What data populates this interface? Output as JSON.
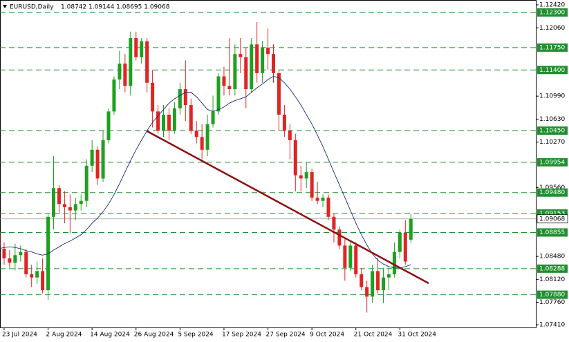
{
  "chart_data": {
    "type": "candlestick",
    "symbol": "EURUSD,Daily",
    "ohlc_text": "1.08742 1.09144 1.08695 1.09068",
    "up_color": "#1fa01f",
    "down_color": "#e02424",
    "categories": [
      null,
      "23 Jul 2024",
      null,
      null,
      null,
      null,
      null,
      null,
      null,
      "2 Aug 2024",
      null,
      null,
      null,
      null,
      null,
      null,
      null,
      "14 Aug 2024",
      null,
      null,
      null,
      null,
      null,
      null,
      null,
      "26 Aug 2024",
      null,
      null,
      null,
      null,
      null,
      null,
      null,
      "5 Sep 2024",
      null,
      null,
      null,
      null,
      null,
      null,
      null,
      "17 Sep 2024",
      null,
      null,
      null,
      null,
      null,
      null,
      null,
      "27 Sep 2024",
      null,
      null,
      null,
      null,
      null,
      null,
      null,
      "9 Oct 2024",
      null,
      null,
      null,
      null,
      null,
      null,
      null,
      "21 Oct 2024",
      null,
      null,
      null,
      null,
      null,
      null,
      null,
      "31 Oct 2024",
      null,
      null
    ],
    "open": [
      1.0885,
      1.086,
      1.0845,
      1.0838,
      1.085,
      1.0855,
      1.082,
      1.0815,
      1.0825,
      1.0795,
      1.091,
      1.0955,
      1.093,
      1.0925,
      1.092,
      1.093,
      1.0935,
      1.099,
      1.1015,
      1.097,
      1.103,
      1.1075,
      1.1125,
      1.115,
      1.1115,
      1.119,
      1.116,
      1.1185,
      1.112,
      1.1075,
      1.1045,
      1.107,
      1.1045,
      1.108,
      1.111,
      1.1085,
      1.1045,
      1.1035,
      1.1015,
      1.1055,
      1.1075,
      1.113,
      1.1115,
      1.111,
      1.1165,
      1.116,
      1.111,
      1.118,
      1.1135,
      1.1175,
      1.1165,
      1.1135,
      1.107,
      1.1045,
      1.103,
      1.0975,
      1.097,
      1.098,
      1.094,
      1.0935,
      1.094,
      1.091,
      1.089,
      1.0865,
      1.083,
      1.0865,
      1.082,
      1.08,
      1.0785,
      1.0825,
      1.0795,
      1.0815,
      1.082,
      1.0855,
      1.0885,
      1.08742
    ],
    "high": [
      1.089,
      1.087,
      1.0858,
      1.0868,
      1.0865,
      1.086,
      1.0835,
      1.084,
      1.0845,
      1.0915,
      1.1005,
      1.096,
      1.095,
      1.0945,
      1.094,
      1.0945,
      1.1,
      1.103,
      1.102,
      1.1045,
      1.108,
      1.113,
      1.117,
      1.1165,
      1.12,
      1.12,
      1.119,
      1.119,
      1.114,
      1.1085,
      1.1085,
      1.108,
      1.109,
      1.112,
      1.1155,
      1.1095,
      1.106,
      1.1055,
      1.107,
      1.11,
      1.1135,
      1.1145,
      1.119,
      1.118,
      1.119,
      1.1175,
      1.119,
      1.1215,
      1.1185,
      1.1205,
      1.118,
      1.114,
      1.1085,
      1.1055,
      1.104,
      1.099,
      1.0995,
      1.0985,
      1.0965,
      1.0945,
      1.0945,
      1.0915,
      1.0895,
      1.0875,
      1.087,
      1.087,
      1.083,
      1.081,
      1.0835,
      1.0845,
      1.083,
      1.083,
      1.087,
      1.089,
      1.0905,
      1.09144
    ],
    "low": [
      1.0855,
      1.0835,
      1.083,
      1.0826,
      1.084,
      1.0815,
      1.08,
      1.0805,
      1.079,
      1.078,
      1.089,
      1.0915,
      1.09,
      1.0885,
      1.0905,
      1.092,
      1.0925,
      1.098,
      1.096,
      1.0965,
      1.1025,
      1.107,
      1.111,
      1.1105,
      1.11,
      1.1155,
      1.115,
      1.1105,
      1.105,
      1.104,
      1.1035,
      1.103,
      1.104,
      1.107,
      1.106,
      1.104,
      1.1025,
      1.1,
      1.1005,
      1.105,
      1.107,
      1.11,
      1.11,
      1.11,
      1.1135,
      1.108,
      1.1105,
      1.112,
      1.112,
      1.114,
      1.112,
      1.1045,
      1.1035,
      1.1,
      1.095,
      1.095,
      1.0955,
      1.0935,
      1.093,
      1.0925,
      1.0905,
      1.087,
      1.086,
      1.081,
      1.0825,
      1.0815,
      1.0795,
      1.076,
      1.0775,
      1.079,
      1.0775,
      1.0795,
      1.0815,
      1.0845,
      1.0835,
      1.08695
    ],
    "close": [
      1.086,
      1.0845,
      1.0838,
      1.085,
      1.0855,
      1.082,
      1.0815,
      1.0825,
      1.0795,
      1.091,
      1.0955,
      1.093,
      1.0925,
      1.092,
      1.093,
      1.0935,
      1.099,
      1.1015,
      1.097,
      1.103,
      1.1075,
      1.1125,
      1.115,
      1.1115,
      1.119,
      1.116,
      1.1185,
      1.112,
      1.1075,
      1.1045,
      1.107,
      1.1045,
      1.108,
      1.111,
      1.1085,
      1.1045,
      1.1035,
      1.1015,
      1.1055,
      1.1075,
      1.113,
      1.1115,
      1.111,
      1.1165,
      1.116,
      1.111,
      1.118,
      1.1135,
      1.1175,
      1.1165,
      1.1135,
      1.107,
      1.1045,
      1.103,
      1.0975,
      1.097,
      1.098,
      1.094,
      1.0935,
      1.094,
      1.091,
      1.089,
      1.0865,
      1.083,
      1.0865,
      1.082,
      1.08,
      1.0785,
      1.0825,
      1.0795,
      1.0815,
      1.082,
      1.0855,
      1.0885,
      1.084,
      1.09068
    ],
    "ma": {
      "color": "#1a2a7a",
      "values": [
        1.086,
        1.0862,
        1.0863,
        1.0862,
        1.086,
        1.0857,
        1.0855,
        1.0852,
        1.085,
        1.0852,
        1.0858,
        1.0863,
        1.0868,
        1.0872,
        1.0877,
        1.0882,
        1.089,
        1.09,
        1.0908,
        1.0918,
        1.093,
        1.0945,
        1.0962,
        1.098,
        1.0998,
        1.1015,
        1.103,
        1.1045,
        1.1058,
        1.1068,
        1.1078,
        1.1088,
        1.1095,
        1.11,
        1.1105,
        1.1105,
        1.1098,
        1.1088,
        1.1078,
        1.1075,
        1.1078,
        1.1082,
        1.1088,
        1.1092,
        1.1095,
        1.1098,
        1.1105,
        1.1112,
        1.1118,
        1.1125,
        1.113,
        1.1128,
        1.112,
        1.111,
        1.1098,
        1.1085,
        1.107,
        1.1055,
        1.1038,
        1.102,
        1.1,
        1.098,
        1.096,
        1.094,
        1.092,
        1.09,
        1.0882,
        1.0866,
        1.0852,
        1.0842,
        1.0836,
        1.0832,
        1.083,
        1.083,
        1.0832,
        1.0835
      ]
    },
    "ylim": [
      1.0741,
      1.1242
    ],
    "yticks": [
      {
        "value": 1.0741,
        "label": "1.07410"
      },
      {
        "value": 1.0776,
        "label": "1.07760"
      },
      {
        "value": 1.0812,
        "label": "1.08120"
      },
      {
        "value": 1.0848,
        "label": "1.08480"
      },
      {
        "value": 1.0956,
        "label": "1.09560"
      },
      {
        "value": 1.1027,
        "label": "1.10270"
      },
      {
        "value": 1.1063,
        "label": "1.10630"
      },
      {
        "value": 1.1099,
        "label": "1.10990"
      },
      {
        "value": 1.1206,
        "label": "1.12060"
      },
      {
        "value": 1.1242,
        "label": "1.12420"
      }
    ],
    "levels": [
      {
        "value": 1.123,
        "label": "1.12300"
      },
      {
        "value": 1.1175,
        "label": "1.11750"
      },
      {
        "value": 1.114,
        "label": "1.11400"
      },
      {
        "value": 1.1045,
        "label": "1.10450"
      },
      {
        "value": 1.09954,
        "label": "1.09954"
      },
      {
        "value": 1.0948,
        "label": "1.09480"
      },
      {
        "value": 1.09153,
        "label": "1.09153"
      },
      {
        "value": 1.08855,
        "label": "1.08855"
      },
      {
        "value": 1.08288,
        "label": "1.08288"
      },
      {
        "value": 1.0788,
        "label": "1.07880"
      }
    ],
    "level_color": "#1f8f2f",
    "current_price": {
      "value": 1.09068,
      "label": "1.09068"
    }
  }
}
